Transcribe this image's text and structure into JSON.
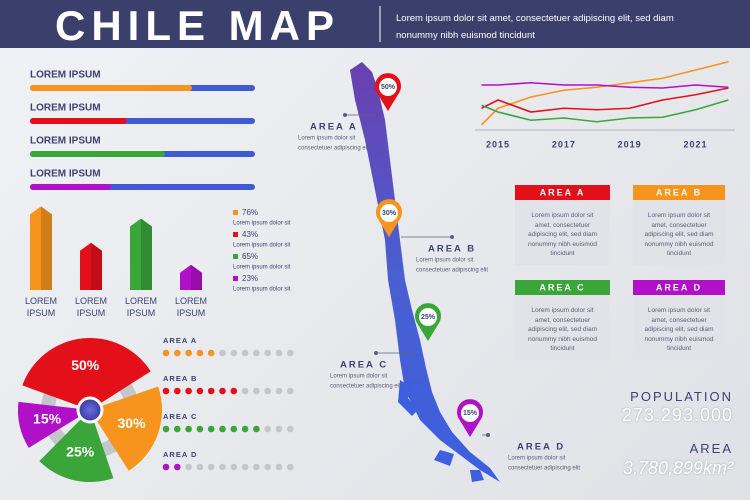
{
  "header": {
    "title": "CHILE MAP",
    "subtitle": "Lorem ipsum dolor sit amet, consectetuer adipiscing elit, sed diam nonummy nibh euismod tincidunt"
  },
  "progress": {
    "items": [
      {
        "label": "LOREM IPSUM",
        "value": 72,
        "color": "#f7941d"
      },
      {
        "label": "LOREM IPSUM",
        "value": 43,
        "color": "#e3101a"
      },
      {
        "label": "LOREM IPSUM",
        "value": 60,
        "color": "#3aa63a"
      },
      {
        "label": "LOREM IPSUM",
        "value": 36,
        "color": "#b110c9"
      }
    ]
  },
  "bars3d": {
    "labels": [
      "LOREM IPSUM",
      "LOREM IPSUM",
      "LOREM IPSUM",
      "LOREM IPSUM"
    ],
    "values": [
      76,
      43,
      65,
      23
    ],
    "value_labels": [
      "76%",
      "43%",
      "65%",
      "23%"
    ],
    "colors": [
      "#f7941d",
      "#e3101a",
      "#3aa63a",
      "#b110c9"
    ],
    "legend_texts": [
      "Lorem ipsum dolor sit",
      "Lorem ipsum dolor sit",
      "Lorem ipsum dolor sit",
      "Lorem ipsum dolor sit"
    ]
  },
  "pie": {
    "values": [
      50,
      30,
      25,
      15
    ],
    "value_labels": [
      "50%",
      "30%",
      "25%",
      "15%"
    ],
    "colors": [
      "#e3101a",
      "#f7941d",
      "#3aa63a",
      "#b110c9"
    ]
  },
  "dots": {
    "total": 12,
    "items": [
      {
        "label": "AREA A",
        "value": 5,
        "color": "#f7941d"
      },
      {
        "label": "AREA B",
        "value": 7,
        "color": "#e3101a"
      },
      {
        "label": "AREA C",
        "value": 9,
        "color": "#3aa63a"
      },
      {
        "label": "AREA D",
        "value": 2,
        "color": "#b110c9"
      }
    ]
  },
  "line_chart": {
    "x": [
      2014.5,
      2015,
      2016,
      2017,
      2018,
      2019,
      2020,
      2021,
      2022
    ],
    "xlim": [
      2014.3,
      2022.2
    ],
    "ylim": [
      0,
      100
    ],
    "xticks": [
      2015,
      2017,
      2019,
      2021
    ],
    "series": [
      {
        "color": "#f7941d",
        "values": [
          7,
          29,
          44,
          53,
          57,
          63,
          69,
          80,
          91
        ]
      },
      {
        "color": "#b110c9",
        "values": [
          60,
          60,
          63,
          60,
          60,
          57,
          56,
          60,
          57
        ]
      },
      {
        "color": "#e3101a",
        "values": [
          29,
          40,
          24,
          29,
          27,
          29,
          40,
          47,
          56
        ]
      },
      {
        "color": "#3aa63a",
        "values": [
          33,
          24,
          13,
          16,
          11,
          16,
          17,
          27,
          40
        ]
      }
    ]
  },
  "map": {
    "pins": [
      {
        "label": "50%",
        "color": "#e3101a",
        "area": "AREA A",
        "lines": [
          "Lorem ipsum dolor sit",
          "consectetuer adipiscing elit"
        ]
      },
      {
        "label": "30%",
        "color": "#f7941d",
        "area": "AREA B",
        "lines": [
          "Lorem ipsum dolor sit",
          "consectetuer adipiscing elit"
        ]
      },
      {
        "label": "25%",
        "color": "#3aa63a",
        "area": "AREA C",
        "lines": [
          "Lorem ipsum dolor sit",
          "consectetuer adipiscing elit"
        ]
      },
      {
        "label": "15%",
        "color": "#b110c9",
        "area": "AREA D",
        "lines": [
          "Lorem ipsum dolor sit",
          "consectetuer adipiscing elit"
        ]
      }
    ]
  },
  "boxes": [
    {
      "title": "AREA A",
      "color": "#e3101a",
      "text": "Lorem ipsum dolor sit amet, consectetuer adipiscing elit, sed diam nonummy nibh euismod tincidunt"
    },
    {
      "title": "AREA B",
      "color": "#f7941d",
      "text": "Lorem ipsum dolor sit amet, consectetuer adipiscing elit, sed diam nonummy nibh euismod tincidunt"
    },
    {
      "title": "AREA C",
      "color": "#3aa63a",
      "text": "Lorem ipsum dolor sit amet, consectetuer adipiscing elit, sed diam nonummy nibh euismod tincidunt"
    },
    {
      "title": "AREA D",
      "color": "#b110c9",
      "text": "Lorem ipsum dolor sit amet, consectetuer adipiscing elit, sed diam nonummy nibh euismod tincidunt"
    }
  ],
  "stats": {
    "population_label": "POPULATION",
    "population": "273.293.000",
    "area_label": "AREA",
    "area": "3,780,899km²"
  }
}
